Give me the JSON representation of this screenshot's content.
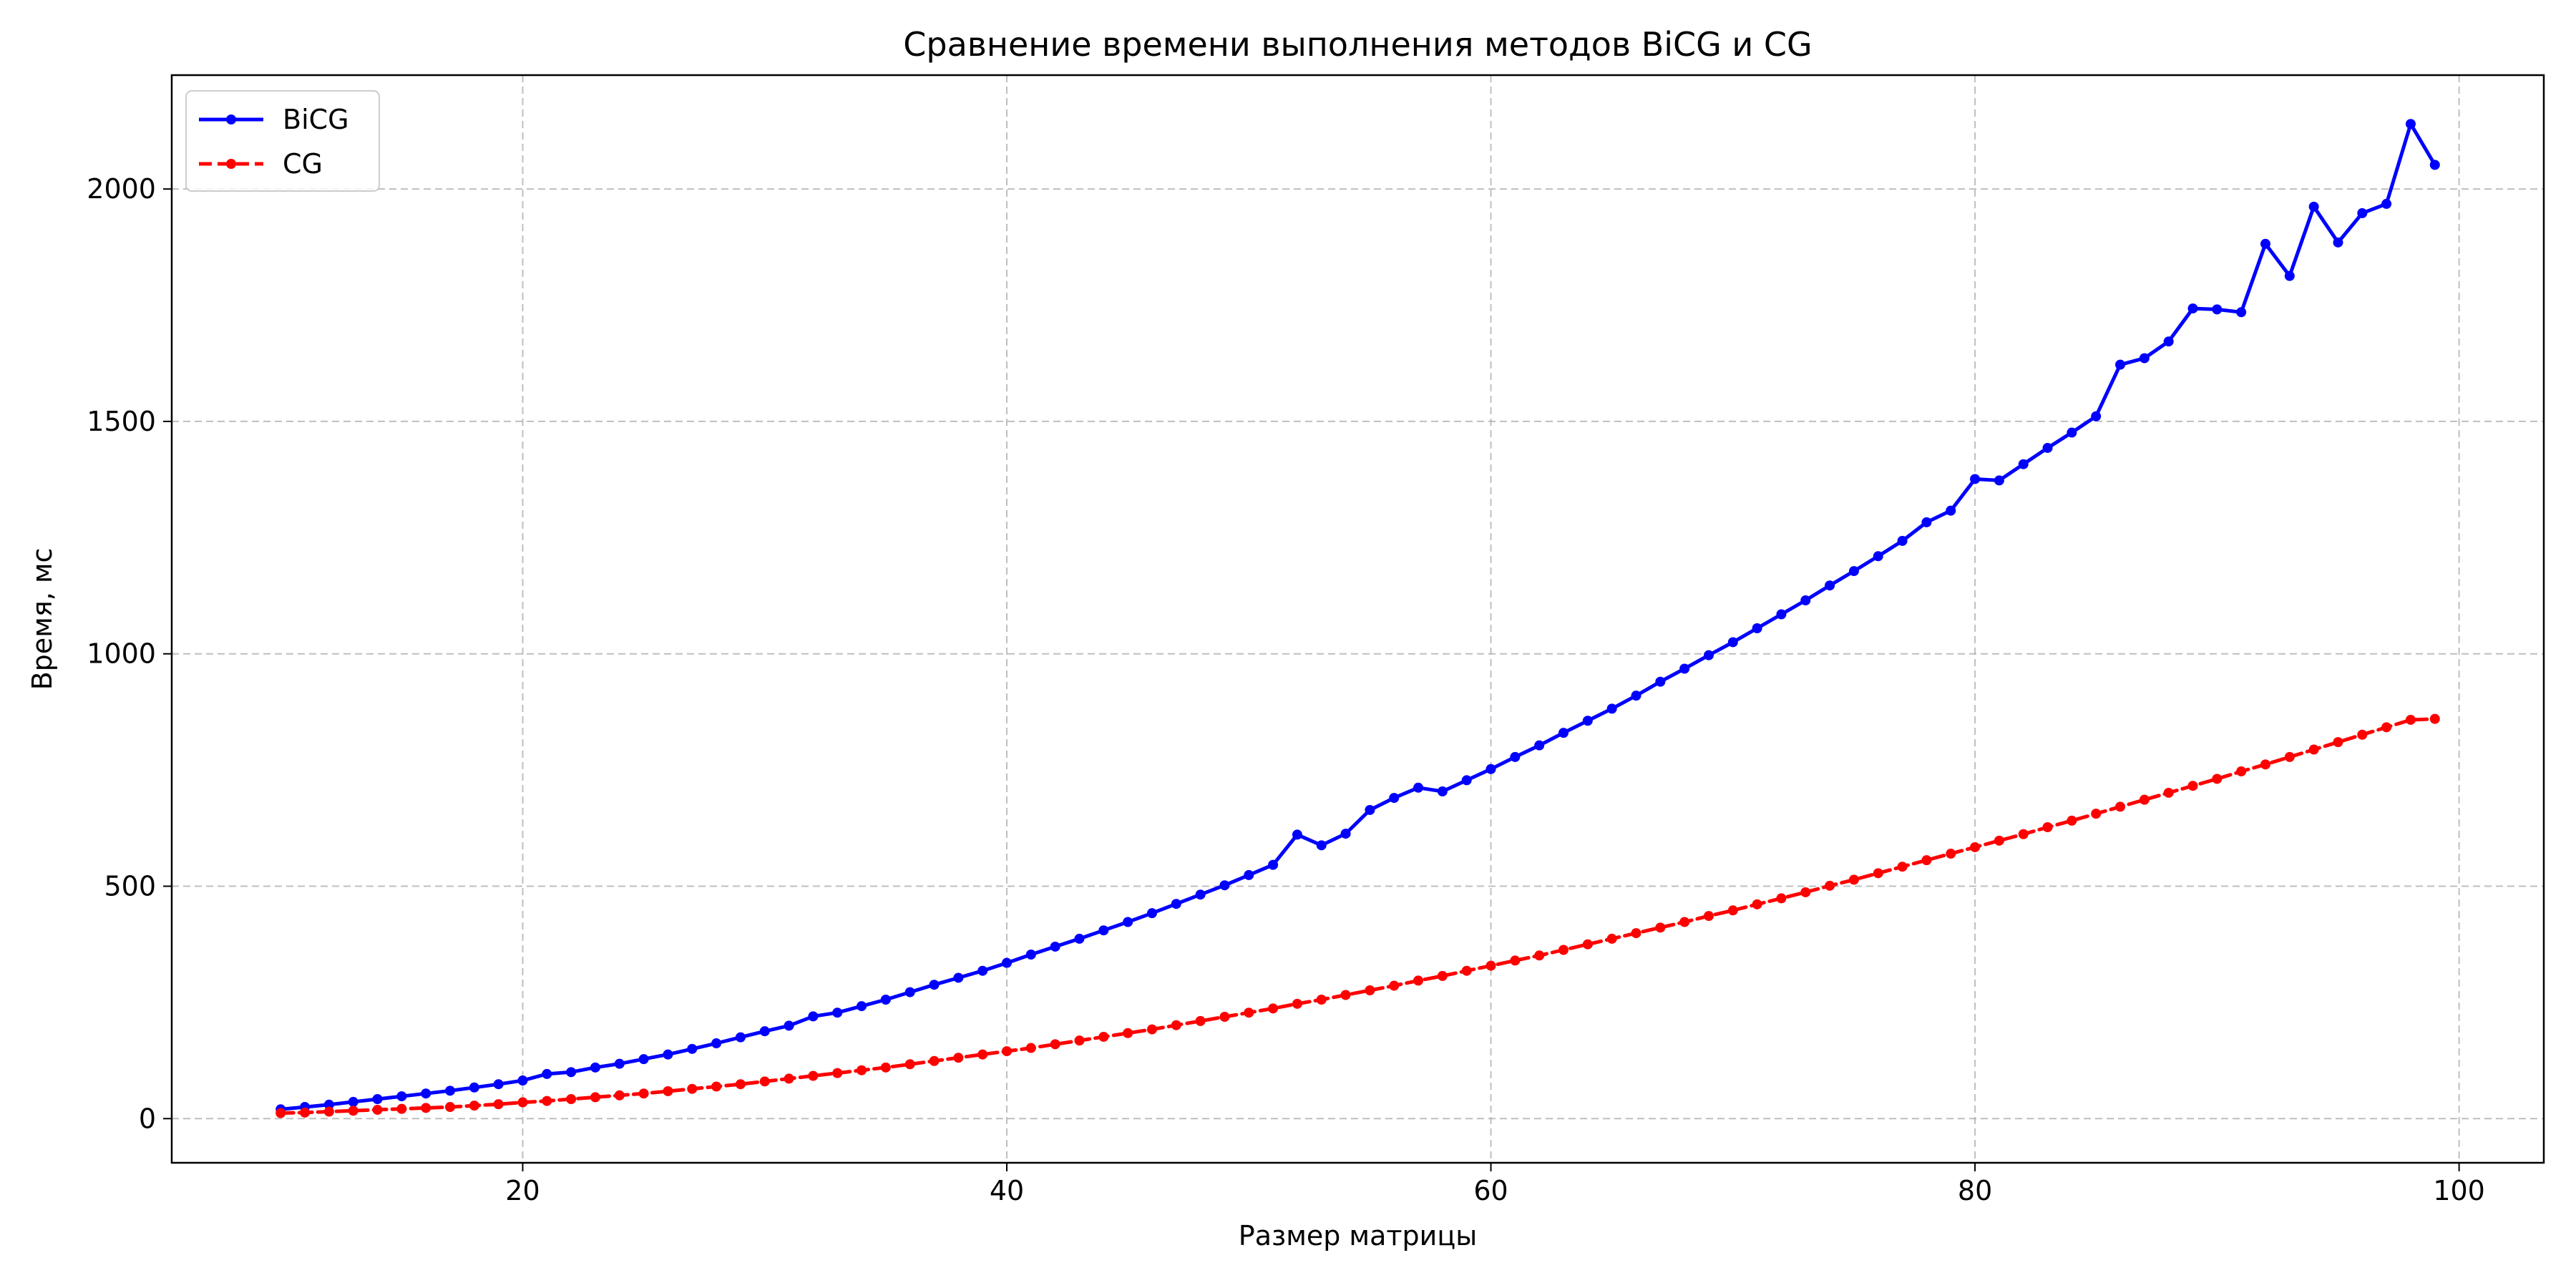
{
  "chart_data": {
    "type": "line",
    "title": "Сравнение времени выполнения методов BiCG и CG",
    "xlabel": "Размер матрицы",
    "ylabel": "Время, мс",
    "xlim": [
      5.5,
      103.5
    ],
    "ylim": [
      -95,
      2245
    ],
    "xticks": [
      20,
      40,
      60,
      80,
      100
    ],
    "yticks": [
      0,
      500,
      1000,
      1500,
      2000
    ],
    "grid": true,
    "legend_position": "top-left",
    "x": [
      10,
      11,
      12,
      13,
      14,
      15,
      16,
      17,
      18,
      19,
      20,
      21,
      22,
      23,
      24,
      25,
      26,
      27,
      28,
      29,
      30,
      31,
      32,
      33,
      34,
      35,
      36,
      37,
      38,
      39,
      40,
      41,
      42,
      43,
      44,
      45,
      46,
      47,
      48,
      49,
      50,
      51,
      52,
      53,
      54,
      55,
      56,
      57,
      58,
      59,
      60,
      61,
      62,
      63,
      64,
      65,
      66,
      67,
      68,
      69,
      70,
      71,
      72,
      73,
      74,
      75,
      76,
      77,
      78,
      79,
      80,
      81,
      82,
      83,
      84,
      85,
      86,
      87,
      88,
      89,
      90,
      91,
      92,
      93,
      94,
      95,
      96,
      97,
      98,
      99
    ],
    "series": [
      {
        "name": "BiCG",
        "color": "#0000ff",
        "line_style": "solid",
        "values": [
          20,
          25,
          30,
          36,
          42,
          48,
          54,
          60,
          67,
          74,
          82,
          96,
          100,
          110,
          118,
          128,
          138,
          150,
          162,
          175,
          188,
          200,
          220,
          228,
          242,
          256,
          272,
          288,
          303,
          318,
          335,
          353,
          370,
          387,
          405,
          423,
          442,
          462,
          482,
          502,
          524,
          546,
          611,
          588,
          613,
          664,
          690,
          712,
          704,
          728,
          752,
          778,
          803,
          830,
          856,
          882,
          910,
          940,
          968,
          997,
          1025,
          1055,
          1085,
          1115,
          1147,
          1178,
          1210,
          1243,
          1283,
          1308,
          1376,
          1373,
          1408,
          1443,
          1476,
          1511,
          1622,
          1636,
          1672,
          1743,
          1741,
          1735,
          1882,
          1813,
          1962,
          1885,
          1948,
          1968,
          2140,
          2052
        ]
      },
      {
        "name": "CG",
        "color": "#ff0000",
        "line_style": "dashed",
        "values": [
          12,
          13,
          15,
          17,
          19,
          21,
          23,
          25,
          28,
          31,
          35,
          38,
          42,
          46,
          50,
          54,
          59,
          64,
          69,
          74,
          80,
          86,
          92,
          98,
          104,
          110,
          117,
          124,
          131,
          138,
          145,
          152,
          160,
          168,
          176,
          184,
          192,
          201,
          210,
          219,
          228,
          237,
          247,
          256,
          266,
          276,
          286,
          297,
          307,
          318,
          329,
          340,
          351,
          363,
          375,
          387,
          399,
          411,
          423,
          436,
          448,
          461,
          474,
          487,
          501,
          514,
          528,
          542,
          556,
          570,
          584,
          598,
          612,
          627,
          641,
          656,
          671,
          686,
          701,
          716,
          731,
          747,
          762,
          778,
          794,
          810,
          826,
          842,
          858,
          860
        ]
      }
    ]
  }
}
